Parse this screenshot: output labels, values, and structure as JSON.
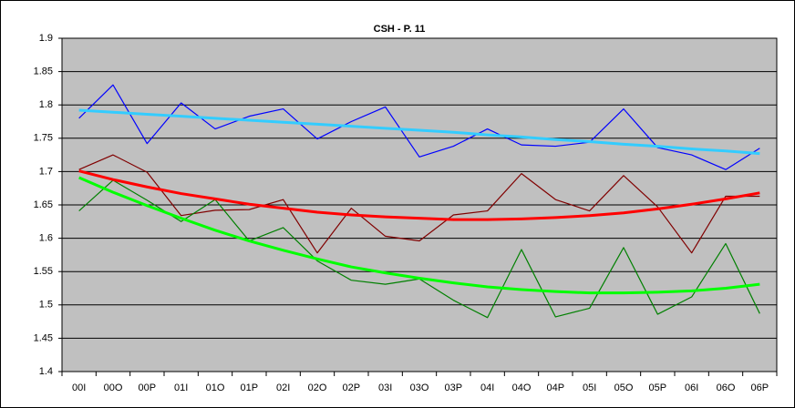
{
  "chart_data": {
    "type": "line",
    "title": "CSH - P. 11",
    "categories": [
      "00I",
      "00O",
      "00P",
      "01I",
      "01O",
      "01P",
      "02I",
      "02O",
      "02P",
      "03I",
      "03O",
      "03P",
      "04I",
      "04O",
      "04P",
      "05I",
      "05O",
      "05P",
      "06I",
      "06O",
      "06P"
    ],
    "series": [
      {
        "color": "#0000ff",
        "values": [
          1.78,
          1.83,
          1.742,
          1.803,
          1.764,
          1.783,
          1.794,
          1.749,
          1.775,
          1.797,
          1.722,
          1.738,
          1.764,
          1.74,
          1.738,
          1.744,
          1.794,
          1.736,
          1.725,
          1.703,
          1.735
        ]
      },
      {
        "color": "#800000",
        "values": [
          1.703,
          1.725,
          1.699,
          1.634,
          1.642,
          1.643,
          1.658,
          1.578,
          1.645,
          1.603,
          1.596,
          1.635,
          1.641,
          1.697,
          1.658,
          1.641,
          1.694,
          1.647,
          1.578,
          1.663,
          1.663
        ]
      },
      {
        "color": "#008000",
        "values": [
          1.641,
          1.687,
          1.657,
          1.625,
          1.658,
          1.596,
          1.616,
          1.566,
          1.537,
          1.531,
          1.539,
          1.507,
          1.481,
          1.583,
          1.482,
          1.495,
          1.586,
          1.486,
          1.512,
          1.592,
          1.487
        ]
      },
      {
        "color": "#33ccff",
        "trendline": true,
        "values": [
          1.792,
          1.789,
          1.786,
          1.783,
          1.78,
          1.777,
          1.774,
          1.771,
          1.768,
          1.765,
          1.762,
          1.759,
          1.755,
          1.752,
          1.748,
          1.745,
          1.741,
          1.738,
          1.734,
          1.731,
          1.727
        ]
      },
      {
        "color": "#ff0000",
        "trendline": true,
        "values": [
          1.701,
          1.688,
          1.677,
          1.667,
          1.659,
          1.651,
          1.645,
          1.639,
          1.635,
          1.632,
          1.63,
          1.628,
          1.628,
          1.629,
          1.631,
          1.634,
          1.638,
          1.644,
          1.651,
          1.659,
          1.668
        ]
      },
      {
        "color": "#00ff00",
        "trendline": true,
        "values": [
          1.691,
          1.669,
          1.649,
          1.63,
          1.612,
          1.596,
          1.582,
          1.569,
          1.557,
          1.548,
          1.54,
          1.533,
          1.527,
          1.523,
          1.52,
          1.518,
          1.518,
          1.519,
          1.521,
          1.525,
          1.531
        ]
      }
    ],
    "ylim": [
      1.4,
      1.9
    ],
    "yticks": [
      1.4,
      1.45,
      1.5,
      1.55,
      1.6,
      1.65,
      1.7,
      1.75,
      1.8,
      1.85,
      1.9
    ],
    "grid": true,
    "plot_background": "#c0c0c0"
  }
}
